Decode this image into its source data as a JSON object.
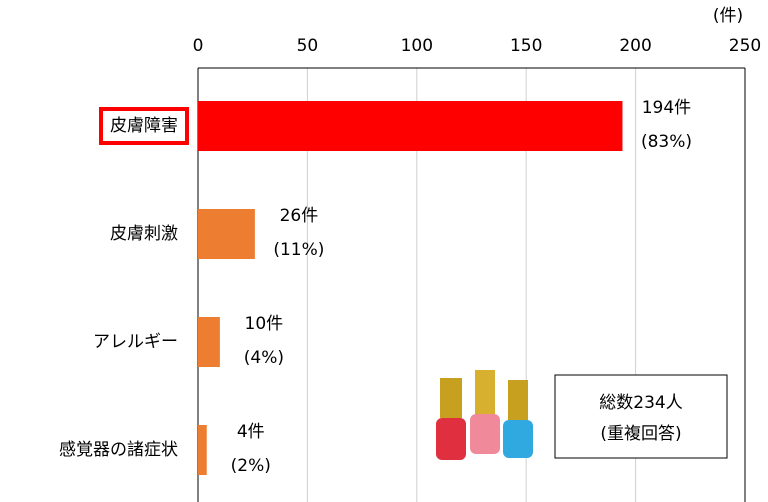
{
  "chart_data": {
    "type": "bar",
    "orientation": "horizontal",
    "axis_unit": "(件)",
    "categories": [
      "皮膚障害",
      "皮膚刺激",
      "アレルギー",
      "感覚器の諸症状"
    ],
    "values": [
      194,
      26,
      10,
      4
    ],
    "value_labels": [
      "194件",
      "26件",
      "10件",
      "4件"
    ],
    "percents": [
      83,
      11,
      4,
      2
    ],
    "percent_labels": [
      "(83%)",
      "(11%)",
      "(4%)",
      "(2%)"
    ],
    "colors": [
      "#ff0000",
      "#ed7d31",
      "#ed7d31",
      "#ed7d31"
    ],
    "highlight": [
      true,
      false,
      false,
      false
    ],
    "xlim": [
      0,
      250
    ],
    "xticks": [
      0,
      50,
      100,
      150,
      200,
      250
    ],
    "grid": true,
    "note": [
      "総数234人",
      "(重複回答)"
    ]
  }
}
